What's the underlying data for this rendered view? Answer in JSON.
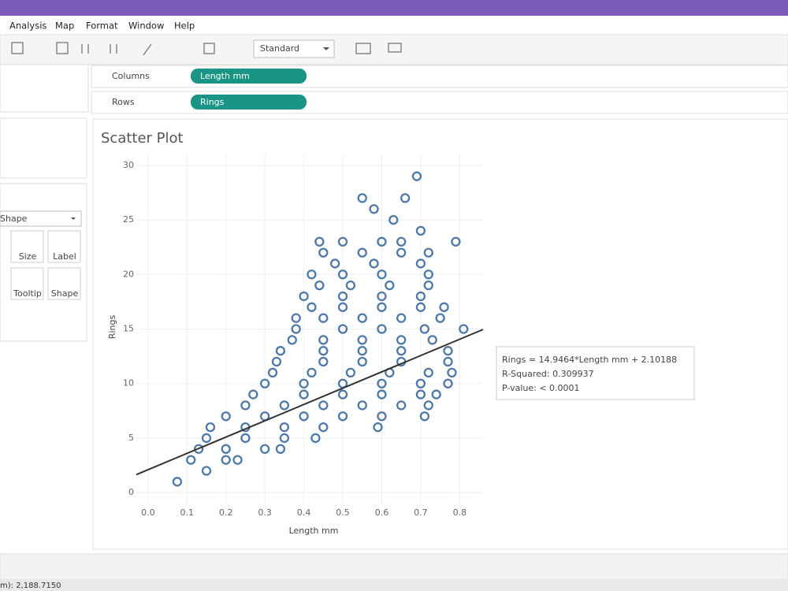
{
  "menu": [
    "Analysis",
    "Map",
    "Format",
    "Window",
    "Help"
  ],
  "toolbar": {
    "fit": "Standard"
  },
  "shelves": {
    "columns": {
      "label": "Columns",
      "pill": "Length mm"
    },
    "rows": {
      "label": "Rows",
      "pill": "Rings"
    }
  },
  "marks_card": {
    "type": "Shape",
    "buttons": [
      "Size",
      "Label",
      "Tooltip",
      "Shape"
    ]
  },
  "status": "m): 2,188.7150",
  "chart_data": {
    "type": "scatter",
    "title": "Scatter Plot",
    "x_label": "Length mm",
    "y_label": "Rings",
    "color": "#4e79a7",
    "grid": true,
    "xlim": [
      -0.03,
      0.86
    ],
    "ylim": [
      -1,
      31
    ],
    "xticks": [
      {
        "value": 0,
        "label": "0.0"
      },
      0.1,
      0.2,
      0.3,
      0.4,
      0.5,
      0.6,
      0.7,
      0.8
    ],
    "yticks": [
      0,
      5,
      10,
      15,
      20,
      25,
      30
    ],
    "x": [
      0.075,
      0.15,
      0.11,
      0.2,
      0.23,
      0.13,
      0.2,
      0.3,
      0.34,
      0.15,
      0.25,
      0.35,
      0.43,
      0.16,
      0.25,
      0.35,
      0.45,
      0.59,
      0.2,
      0.3,
      0.4,
      0.5,
      0.6,
      0.71,
      0.25,
      0.35,
      0.45,
      0.55,
      0.65,
      0.72,
      0.27,
      0.4,
      0.5,
      0.6,
      0.7,
      0.74,
      0.3,
      0.4,
      0.5,
      0.6,
      0.7,
      0.77,
      0.32,
      0.42,
      0.52,
      0.62,
      0.72,
      0.78,
      0.33,
      0.45,
      0.55,
      0.65,
      0.77,
      0.34,
      0.45,
      0.55,
      0.65,
      0.77,
      0.37,
      0.45,
      0.55,
      0.65,
      0.73,
      0.38,
      0.5,
      0.6,
      0.71,
      0.81,
      0.38,
      0.45,
      0.55,
      0.65,
      0.75,
      0.42,
      0.5,
      0.6,
      0.7,
      0.76,
      0.4,
      0.5,
      0.6,
      0.7,
      0.44,
      0.52,
      0.62,
      0.72,
      0.42,
      0.5,
      0.6,
      0.72,
      0.48,
      0.58,
      0.7,
      0.45,
      0.55,
      0.65,
      0.72,
      0.44,
      0.5,
      0.6,
      0.65,
      0.79,
      0.7,
      0.63,
      0.58,
      0.55,
      0.66,
      0.69
    ],
    "y": [
      1,
      2,
      3,
      3,
      3,
      4,
      4,
      4,
      4,
      5,
      5,
      5,
      5,
      6,
      6,
      6,
      6,
      6,
      7,
      7,
      7,
      7,
      7,
      7,
      8,
      8,
      8,
      8,
      8,
      8,
      9,
      9,
      9,
      9,
      9,
      9,
      10,
      10,
      10,
      10,
      10,
      10,
      11,
      11,
      11,
      11,
      11,
      11,
      12,
      12,
      12,
      12,
      12,
      13,
      13,
      13,
      13,
      13,
      14,
      14,
      14,
      14,
      14,
      15,
      15,
      15,
      15,
      15,
      16,
      16,
      16,
      16,
      16,
      17,
      17,
      17,
      17,
      17,
      18,
      18,
      18,
      18,
      19,
      19,
      19,
      19,
      20,
      20,
      20,
      20,
      21,
      21,
      21,
      22,
      22,
      22,
      22,
      23,
      23,
      23,
      23,
      23,
      24,
      25,
      26,
      27,
      27,
      29
    ],
    "trendline": {
      "slope": 14.9464,
      "intercept": 2.10188,
      "color": "#333333"
    },
    "tooltip": [
      "Rings = 14.9464*Length mm + 2.10188",
      "R-Squared: 0.309937",
      "P-value: < 0.0001"
    ]
  }
}
